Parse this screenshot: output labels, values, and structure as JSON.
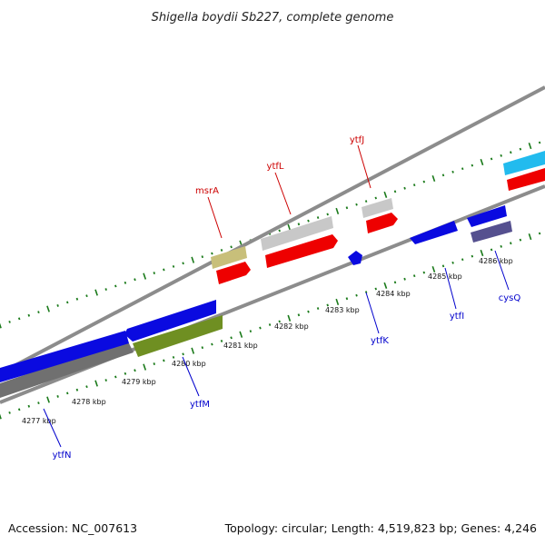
{
  "title": "Shigella boydii Sb227, complete genome",
  "footer": {
    "accession": "Accession: NC_007613",
    "summary": "Topology: circular; Length: 4,519,823 bp; Genes: 4,246"
  },
  "colors": {
    "backbone": "#8c8c8c",
    "tick": "#1a7a1a",
    "label_forward": "#cc0000",
    "label_reverse": "#0000cc"
  },
  "scale": {
    "unit": "kbp",
    "tick_labels": [
      {
        "kbp": 4277,
        "text": "4277 kbp"
      },
      {
        "kbp": 4278,
        "text": "4278 kbp"
      },
      {
        "kbp": 4279,
        "text": "4279 kbp"
      },
      {
        "kbp": 4280,
        "text": "4280 kbp"
      },
      {
        "kbp": 4281,
        "text": "4281 kbp"
      },
      {
        "kbp": 4282,
        "text": "4282 kbp"
      },
      {
        "kbp": 4283,
        "text": "4283 kbp"
      },
      {
        "kbp": 4284,
        "text": "4284 kbp"
      },
      {
        "kbp": 4285,
        "text": "4285 kbp"
      },
      {
        "kbp": 4286,
        "text": "4286 kbp"
      }
    ]
  },
  "genes": [
    {
      "name": "msrA",
      "strand": "+",
      "label_color": "#cc0000"
    },
    {
      "name": "ytfL",
      "strand": "+",
      "label_color": "#cc0000"
    },
    {
      "name": "ytfJ",
      "strand": "+",
      "label_color": "#cc0000"
    },
    {
      "name": "ytfN",
      "strand": "-",
      "label_color": "#0000cc"
    },
    {
      "name": "ytfM",
      "strand": "-",
      "label_color": "#0000cc"
    },
    {
      "name": "ytfK",
      "strand": "-",
      "label_color": "#0000cc"
    },
    {
      "name": "ytfI",
      "strand": "-",
      "label_color": "#0000cc"
    },
    {
      "name": "cysQ",
      "strand": "-",
      "label_color": "#0000cc"
    }
  ],
  "feature_colors": {
    "cds_forward": "#ee0000",
    "cds_reverse": "#0a0ae0",
    "gene_grey": "#c8c8c8",
    "gene_olive": "#c8bf7a",
    "gene_green": "#6f8f22",
    "gene_slate": "#55508f",
    "gene_cyan": "#22bbee",
    "gene_darkgrey": "#707070"
  }
}
